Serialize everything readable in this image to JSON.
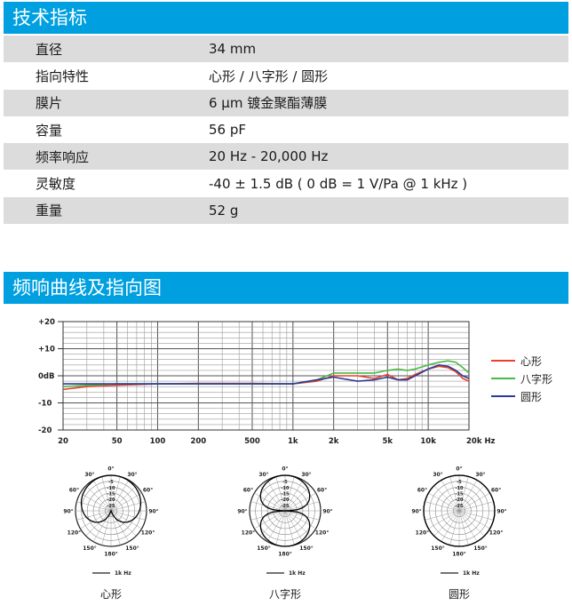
{
  "specs": {
    "title": "技术指标",
    "rows": [
      {
        "label": "直径",
        "value": "34 mm"
      },
      {
        "label": "指向特性",
        "value": "心形 / 八字形 / 圆形"
      },
      {
        "label": "膜片",
        "value": "6 µm 镀金聚酯薄膜"
      },
      {
        "label": "容量",
        "value": "56 pF"
      },
      {
        "label": "频率响应",
        "value": "20 Hz - 20,000 Hz"
      },
      {
        "label": "灵敏度",
        "value": "-40 ± 1.5 dB ( 0 dB = 1 V/Pa @ 1 kHz )"
      },
      {
        "label": "重量",
        "value": "52 g"
      }
    ]
  },
  "section2": {
    "title": "频响曲线及指向图"
  },
  "chart_data": [
    {
      "type": "line",
      "x_scale": "log",
      "xlim": [
        20,
        20000
      ],
      "ylim": [
        -20,
        20
      ],
      "x_ticks": [
        20,
        50,
        100,
        200,
        500,
        1000,
        2000,
        5000,
        10000,
        20000
      ],
      "x_tick_labels": [
        "20",
        "50",
        "100",
        "200",
        "500",
        "1k",
        "2k",
        "5k",
        "10k",
        "20k Hz"
      ],
      "y_ticks": [
        20,
        10,
        0,
        -10,
        -20
      ],
      "y_tick_labels": [
        "+20",
        "+10",
        "0dB",
        "-10",
        "-20"
      ],
      "grid": true,
      "legend": "right",
      "series": [
        {
          "name": "心形",
          "color": "#e8432a",
          "x": [
            20,
            30,
            50,
            100,
            200,
            500,
            1000,
            1500,
            2000,
            3000,
            4000,
            5000,
            6000,
            7000,
            8000,
            10000,
            12000,
            14000,
            16000,
            18000,
            20000
          ],
          "y": [
            -5,
            -4,
            -3.5,
            -3,
            -2.8,
            -2.8,
            -3,
            -2,
            0,
            0,
            -1,
            0.5,
            -1.5,
            -1,
            0.5,
            2.5,
            3.5,
            3,
            1.5,
            -1,
            -2
          ]
        },
        {
          "name": "八字形",
          "color": "#4cb848",
          "x": [
            20,
            30,
            50,
            100,
            200,
            500,
            1000,
            1500,
            2000,
            3000,
            4000,
            5000,
            6000,
            7000,
            8000,
            10000,
            12000,
            14000,
            16000,
            18000,
            20000
          ],
          "y": [
            -4,
            -3.5,
            -3,
            -3,
            -3,
            -3,
            -3,
            -1.5,
            1,
            1,
            1,
            2,
            2.5,
            2,
            2.5,
            4,
            5,
            5.5,
            5,
            3,
            1
          ]
        },
        {
          "name": "圆形",
          "color": "#2b3a9a",
          "x": [
            20,
            30,
            50,
            100,
            200,
            500,
            1000,
            1500,
            2000,
            3000,
            4000,
            5000,
            6000,
            7000,
            8000,
            10000,
            12000,
            14000,
            16000,
            18000,
            20000
          ],
          "y": [
            -3,
            -3,
            -3,
            -3,
            -3,
            -3,
            -3,
            -1.5,
            -0.5,
            -2,
            -1.5,
            -0.5,
            -1.5,
            -1.5,
            0,
            2.5,
            4,
            3.5,
            2,
            0,
            -1
          ]
        }
      ]
    },
    {
      "type": "polar",
      "pattern": "cardioid",
      "title": "心形",
      "angle_labels": [
        "0°",
        "30°",
        "60°",
        "90°",
        "120°",
        "150°",
        "180°"
      ],
      "db_ring_labels": [
        "-5",
        "-10",
        "-15",
        "-20",
        "-25"
      ],
      "legend": "1k Hz"
    },
    {
      "type": "polar",
      "pattern": "figure-8",
      "title": "八字形",
      "angle_labels": [
        "0°",
        "30°",
        "60°",
        "90°",
        "120°",
        "150°",
        "180°"
      ],
      "db_ring_labels": [
        "-5",
        "-10",
        "-15",
        "-20",
        "-25"
      ],
      "legend": "1k Hz"
    },
    {
      "type": "polar",
      "pattern": "omni",
      "title": "圆形",
      "angle_labels": [
        "0°",
        "30°",
        "60°",
        "90°",
        "120°",
        "150°",
        "180°"
      ],
      "db_ring_labels": [
        "-5",
        "-10",
        "-15",
        "-20",
        "-25"
      ],
      "legend": "1k Hz"
    }
  ]
}
